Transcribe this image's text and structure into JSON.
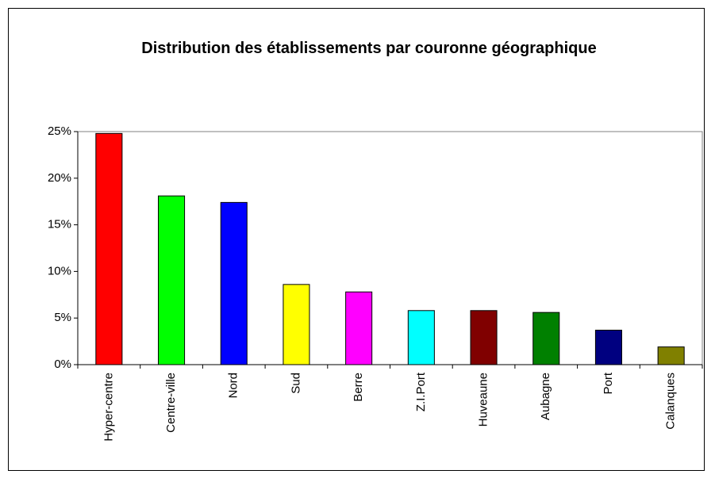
{
  "chart_data": {
    "type": "bar",
    "title": "Distribution des établissements par couronne géographique",
    "categories": [
      "Hyper-centre",
      "Centre-ville",
      "Nord",
      "Sud",
      "Berre",
      "Z.I.Port",
      "Huveaune",
      "Aubagne",
      "Port",
      "Calanques"
    ],
    "values": [
      24.8,
      18.1,
      17.4,
      8.6,
      7.8,
      5.8,
      5.8,
      5.6,
      3.7,
      1.9
    ],
    "colors": [
      "#ff0000",
      "#00ff00",
      "#0000ff",
      "#ffff00",
      "#ff00ff",
      "#00ffff",
      "#800000",
      "#008000",
      "#000080",
      "#808000"
    ],
    "ylim": [
      0,
      25
    ],
    "yticks": [
      {
        "value": 0,
        "label": "0%"
      },
      {
        "value": 5,
        "label": "5%"
      },
      {
        "value": 10,
        "label": "10%"
      },
      {
        "value": 15,
        "label": "15%"
      },
      {
        "value": 20,
        "label": "20%"
      },
      {
        "value": 25,
        "label": "25%"
      }
    ],
    "grid": false
  }
}
